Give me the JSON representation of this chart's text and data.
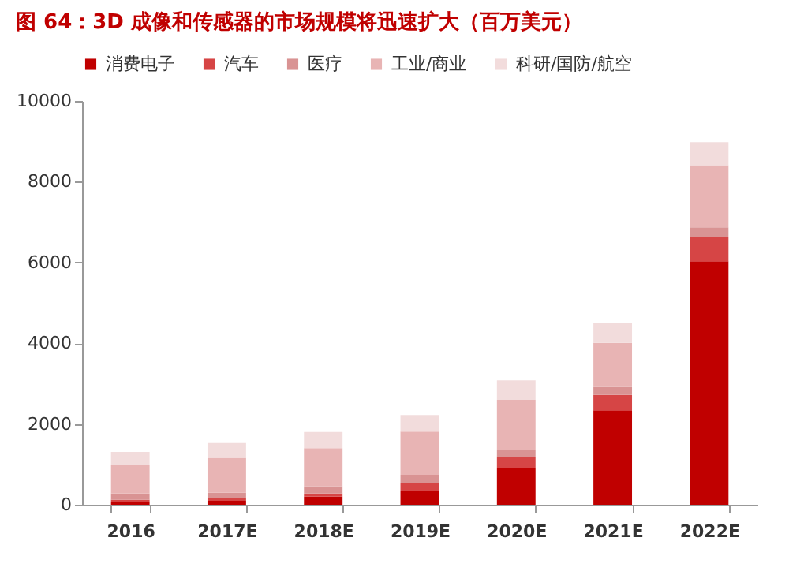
{
  "chart_data": {
    "type": "bar",
    "title": "图 64：3D 成像和传感器的市场规模将迅速扩大（百万美元）",
    "categories": [
      "2016",
      "2017E",
      "2018E",
      "2019E",
      "2020E",
      "2021E",
      "2022E"
    ],
    "series": [
      {
        "name": "消费电子",
        "color": "#c00000",
        "values": [
          60,
          100,
          200,
          350,
          920,
          2340,
          6030
        ]
      },
      {
        "name": "汽车",
        "color": "#d64545",
        "values": [
          60,
          70,
          80,
          190,
          250,
          380,
          590
        ]
      },
      {
        "name": "医疗",
        "color": "#d99393",
        "values": [
          160,
          130,
          180,
          200,
          180,
          200,
          250
        ]
      },
      {
        "name": "工业/商业",
        "color": "#e8b4b4",
        "values": [
          710,
          860,
          940,
          1070,
          1250,
          1090,
          1540
        ]
      },
      {
        "name": "科研/国防/航空",
        "color": "#f2dcdc",
        "values": [
          320,
          370,
          400,
          410,
          480,
          500,
          570
        ]
      }
    ],
    "stacked": true,
    "ylim": [
      0,
      10000
    ],
    "yticks": [
      0,
      2000,
      4000,
      6000,
      8000,
      10000
    ],
    "grid": false,
    "legend": "top"
  }
}
